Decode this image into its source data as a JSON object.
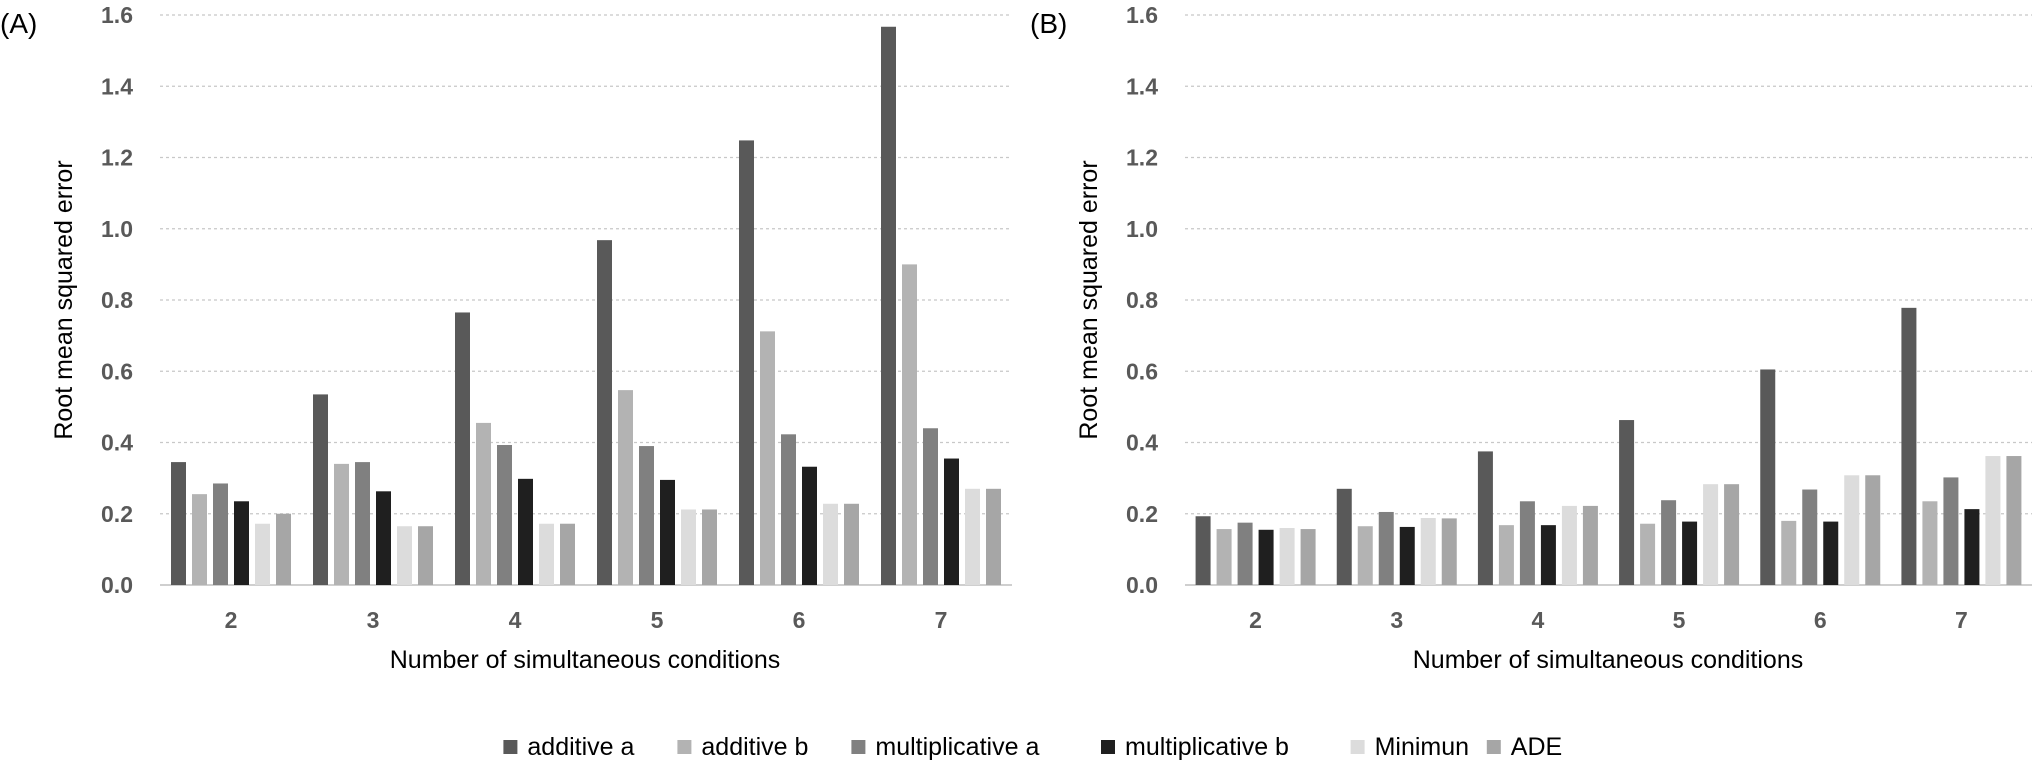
{
  "chart_data": [
    {
      "type": "bar",
      "panel_label": "(A)",
      "xlabel": "Number of simultaneous conditions",
      "ylabel": "Root mean squared error",
      "ylim": [
        0,
        1.6
      ],
      "yticks": [
        "0.0",
        "0.2",
        "0.4",
        "0.6",
        "0.8",
        "1.0",
        "1.2",
        "1.4",
        "1.6"
      ],
      "grid": true,
      "categories": [
        "2",
        "3",
        "4",
        "5",
        "6",
        "7"
      ],
      "series": [
        {
          "name": "additive a",
          "color": "#595959",
          "values": [
            0.345,
            0.535,
            0.765,
            0.968,
            1.248,
            1.567
          ]
        },
        {
          "name": "additive b",
          "color": "#b3b3b3",
          "values": [
            0.255,
            0.34,
            0.455,
            0.547,
            0.712,
            0.9
          ]
        },
        {
          "name": "multiplicative a",
          "color": "#808080",
          "values": [
            0.285,
            0.345,
            0.393,
            0.39,
            0.423,
            0.44
          ]
        },
        {
          "name": "multiplicative b",
          "color": "#1f1f1f",
          "values": [
            0.235,
            0.263,
            0.298,
            0.295,
            0.332,
            0.355
          ]
        },
        {
          "name": "Minimun",
          "color": "#dcdcdc",
          "values": [
            0.172,
            0.165,
            0.172,
            0.212,
            0.228,
            0.27
          ]
        },
        {
          "name": "ADE",
          "color": "#a6a6a6",
          "values": [
            0.2,
            0.165,
            0.172,
            0.212,
            0.228,
            0.27
          ]
        }
      ]
    },
    {
      "type": "bar",
      "panel_label": "(B)",
      "xlabel": "Number of simultaneous conditions",
      "ylabel": "Root mean squared error",
      "ylim": [
        0,
        1.6
      ],
      "yticks": [
        "0.0",
        "0.2",
        "0.4",
        "0.6",
        "0.8",
        "1.0",
        "1.2",
        "1.4",
        "1.6"
      ],
      "grid": true,
      "categories": [
        "2",
        "3",
        "4",
        "5",
        "6",
        "7"
      ],
      "series": [
        {
          "name": "additive a",
          "color": "#595959",
          "values": [
            0.193,
            0.27,
            0.375,
            0.463,
            0.605,
            0.778
          ]
        },
        {
          "name": "additive b",
          "color": "#b3b3b3",
          "values": [
            0.157,
            0.165,
            0.168,
            0.172,
            0.18,
            0.235
          ]
        },
        {
          "name": "multiplicative a",
          "color": "#808080",
          "values": [
            0.175,
            0.205,
            0.235,
            0.238,
            0.268,
            0.302
          ]
        },
        {
          "name": "multiplicative b",
          "color": "#1f1f1f",
          "values": [
            0.155,
            0.163,
            0.168,
            0.178,
            0.178,
            0.213
          ]
        },
        {
          "name": "Minimun",
          "color": "#dcdcdc",
          "values": [
            0.16,
            0.188,
            0.222,
            0.283,
            0.308,
            0.362
          ]
        },
        {
          "name": "ADE",
          "color": "#a6a6a6",
          "values": [
            0.157,
            0.187,
            0.222,
            0.283,
            0.308,
            0.362
          ]
        }
      ]
    }
  ],
  "legend": {
    "placement": "bottom",
    "items": [
      {
        "label": "additive a",
        "color": "#595959"
      },
      {
        "label": "additive b",
        "color": "#b3b3b3"
      },
      {
        "label": "multiplicative a",
        "color": "#808080"
      },
      {
        "label": "multiplicative b",
        "color": "#1f1f1f"
      },
      {
        "label": "Minimun",
        "color": "#dcdcdc"
      },
      {
        "label": "ADE",
        "color": "#a6a6a6"
      }
    ]
  }
}
